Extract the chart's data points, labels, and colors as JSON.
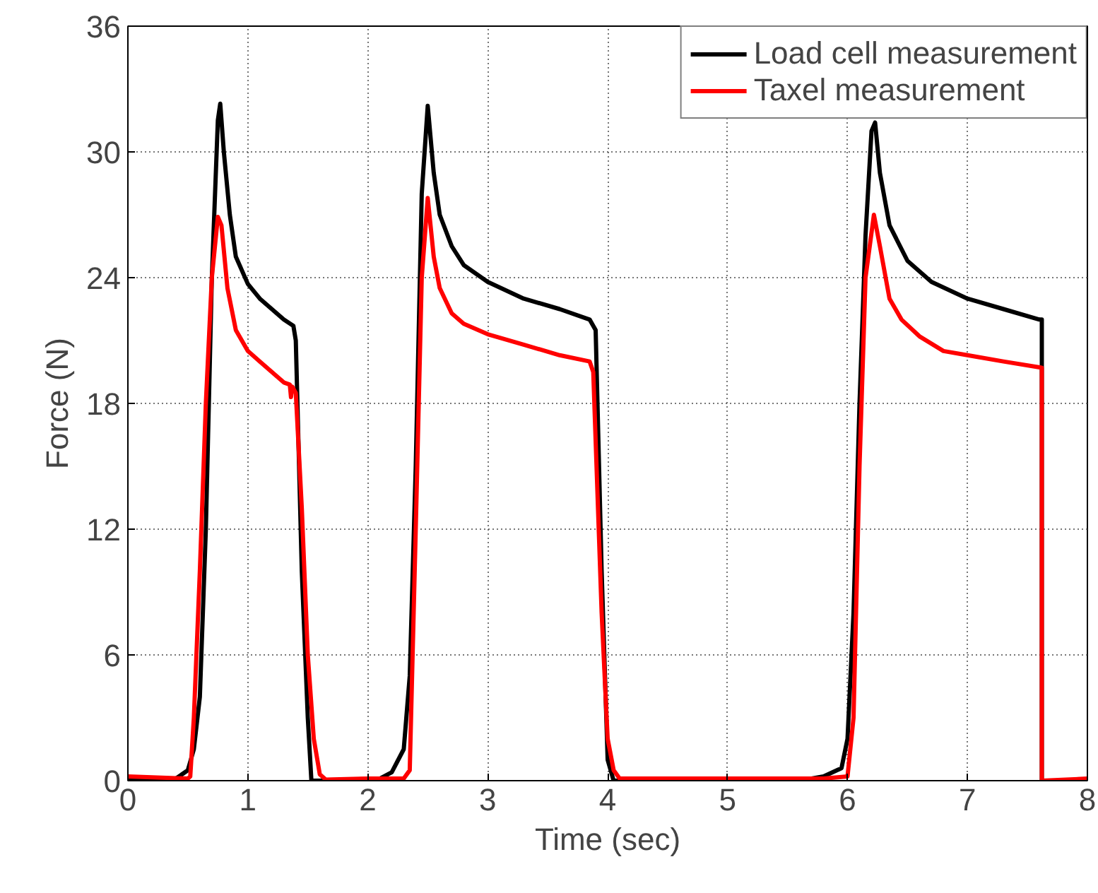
{
  "chart_data": {
    "type": "line",
    "xlabel": "Time (sec)",
    "ylabel": "Force (N)",
    "xlim": [
      0,
      8
    ],
    "xticks": [
      0,
      1,
      2,
      3,
      4,
      5,
      6,
      7,
      8
    ],
    "ylim": [
      0,
      36
    ],
    "yticks": [
      0,
      6,
      12,
      18,
      24,
      30,
      36
    ],
    "grid": true,
    "legend": "top right",
    "line_style": "solid",
    "marker": "none",
    "series": [
      {
        "name": "Load cell measurement",
        "color": "#000000",
        "x": [
          0,
          0.4,
          0.5,
          0.55,
          0.6,
          0.65,
          0.7,
          0.75,
          0.77,
          0.8,
          0.85,
          0.9,
          1.0,
          1.1,
          1.2,
          1.3,
          1.38,
          1.4,
          1.45,
          1.5,
          1.53,
          2.0,
          2.1,
          2.2,
          2.3,
          2.35,
          2.4,
          2.45,
          2.5,
          2.55,
          2.6,
          2.7,
          2.8,
          3.0,
          3.3,
          3.6,
          3.85,
          3.9,
          3.95,
          4.0,
          4.05,
          5.6,
          5.8,
          5.95,
          6.0,
          6.05,
          6.1,
          6.15,
          6.2,
          6.23,
          6.27,
          6.35,
          6.5,
          6.7,
          7.0,
          7.3,
          7.6,
          7.62,
          7.62,
          8
        ],
        "values": [
          0,
          0.1,
          0.5,
          1.5,
          4,
          12,
          24,
          31.5,
          32.3,
          30,
          27,
          25,
          23.7,
          23,
          22.5,
          22,
          21.7,
          21,
          10,
          3,
          0,
          0,
          0.1,
          0.4,
          1.5,
          5,
          15,
          28,
          32.2,
          29,
          27,
          25.5,
          24.6,
          23.8,
          23,
          22.5,
          22,
          21.5,
          10,
          1,
          0,
          0,
          0.2,
          0.6,
          2,
          8,
          18,
          26,
          31,
          31.4,
          29,
          26.5,
          24.8,
          23.8,
          23,
          22.5,
          22,
          22,
          0,
          0
        ]
      },
      {
        "name": "Taxel measurement",
        "color": "#ff0000",
        "x": [
          0,
          0.5,
          0.52,
          0.55,
          0.6,
          0.65,
          0.7,
          0.75,
          0.78,
          0.83,
          0.9,
          1.0,
          1.1,
          1.2,
          1.3,
          1.35,
          1.36,
          1.37,
          1.4,
          1.45,
          1.5,
          1.55,
          1.6,
          1.65,
          2.0,
          2.3,
          2.35,
          2.4,
          2.45,
          2.5,
          2.55,
          2.6,
          2.7,
          2.8,
          3.0,
          3.3,
          3.6,
          3.85,
          3.88,
          3.95,
          4.0,
          4.05,
          4.1,
          5.8,
          6.0,
          6.05,
          6.1,
          6.15,
          6.22,
          6.27,
          6.35,
          6.45,
          6.6,
          6.8,
          7.0,
          7.3,
          7.62,
          7.62,
          8
        ],
        "values": [
          0.2,
          0.1,
          0.2,
          3,
          10,
          18,
          24,
          26.9,
          26.5,
          23.5,
          21.5,
          20.5,
          20,
          19.5,
          19,
          18.9,
          18.3,
          18.8,
          18.5,
          13,
          6,
          2,
          0.3,
          0.05,
          0.1,
          0.1,
          0.5,
          12,
          24,
          27.8,
          25,
          23.5,
          22.3,
          21.8,
          21.3,
          20.8,
          20.3,
          20,
          19.5,
          8,
          2,
          0.5,
          0.1,
          0.1,
          0.2,
          3,
          15,
          24,
          27,
          25.5,
          23,
          22,
          21.2,
          20.5,
          20.3,
          20,
          19.7,
          0,
          0.1
        ]
      }
    ]
  }
}
